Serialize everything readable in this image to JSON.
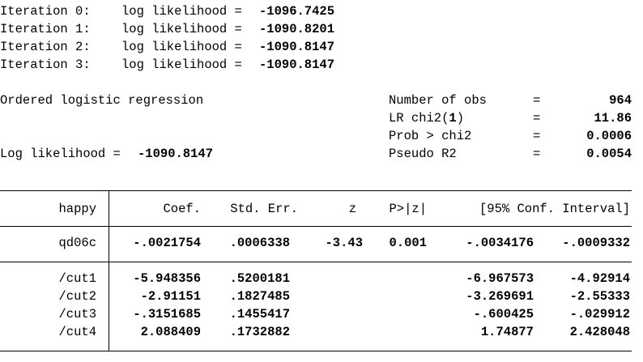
{
  "iterations": [
    {
      "label": "Iteration 0:",
      "text": "log likelihood = ",
      "value": "-1096.7425"
    },
    {
      "label": "Iteration 1:",
      "text": "log likelihood = ",
      "value": "-1090.8201"
    },
    {
      "label": "Iteration 2:",
      "text": "log likelihood = ",
      "value": "-1090.8147"
    },
    {
      "label": "Iteration 3:",
      "text": "log likelihood = ",
      "value": "-1090.8147"
    }
  ],
  "model": {
    "title": "Ordered logistic regression",
    "loglik_label": "Log likelihood = ",
    "loglik_value": "-1090.8147"
  },
  "stats": [
    {
      "label": "Number of obs",
      "eq": "=",
      "value": "964"
    },
    {
      "label_pre": "LR chi2(",
      "label_bold": "1",
      "label_post": ")",
      "eq": "=",
      "value": "11.86"
    },
    {
      "label": "Prob > chi2",
      "eq": "=",
      "value": "0.0006"
    },
    {
      "label": "Pseudo R2",
      "eq": "=",
      "value": "0.0054"
    }
  ],
  "table": {
    "depvar": "happy",
    "headers": {
      "coef": "Coef.",
      "se": "Std. Err.",
      "z": "z",
      "p": "P>|z|",
      "ci": "[95% Conf. Interval]"
    },
    "coef_rows": [
      {
        "name": "qd06c",
        "coef": "-.0021754",
        "se": ".0006338",
        "z": "-3.43",
        "p": "0.001",
        "lo": "-.0034176",
        "hi": "-.0009332"
      }
    ],
    "cut_rows": [
      {
        "name": "/cut1",
        "coef": "-5.948356",
        "se": ".5200181",
        "lo": "-6.967573",
        "hi": "-4.92914"
      },
      {
        "name": "/cut2",
        "coef": "-2.91151",
        "se": ".1827485",
        "lo": "-3.269691",
        "hi": "-2.55333"
      },
      {
        "name": "/cut3",
        "coef": "-.3151685",
        "se": ".1455417",
        "lo": "-.600425",
        "hi": "-.029912"
      },
      {
        "name": "/cut4",
        "coef": "2.088409",
        "se": ".1732882",
        "lo": "1.74877",
        "hi": "2.428048"
      }
    ]
  }
}
